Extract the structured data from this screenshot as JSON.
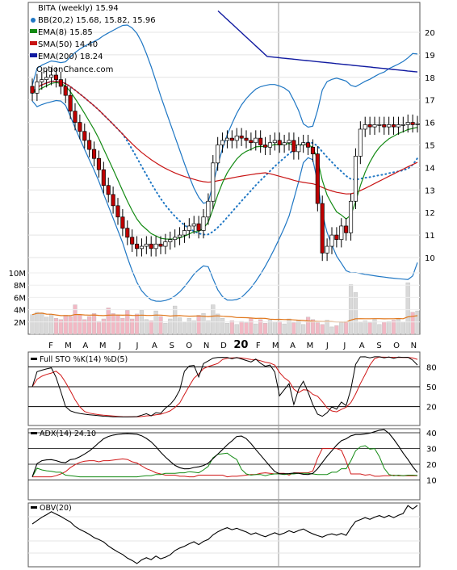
{
  "chart_data": [
    {
      "type": "candlestick",
      "panel": "price",
      "legend": [
        {
          "label": "BITA (weekly) 15.94",
          "color": "#000000",
          "marker": "none"
        },
        {
          "label": "BB(20,2) 15.68, 15.82, 15.96",
          "color": "#1f77c4",
          "marker": "dot"
        },
        {
          "label": "EMA(8) 15.85",
          "color": "#138a13",
          "marker": "square"
        },
        {
          "label": "SMA(50) 14.40",
          "color": "#c81414",
          "marker": "square"
        },
        {
          "label": "EMA(200) 18.24",
          "color": "#101aa0",
          "marker": "square"
        }
      ],
      "watermark": "OptionChance.com",
      "y_ticks": [
        "10",
        "11",
        "12",
        "13",
        "14",
        "15",
        "16",
        "17",
        "18",
        "19",
        "20"
      ],
      "ylim": [
        9,
        21
      ],
      "close": [
        17.3,
        17.8,
        17.9,
        18.0,
        18.1,
        17.9,
        17.6,
        17.2,
        16.5,
        16.0,
        15.6,
        15.2,
        14.8,
        14.4,
        13.9,
        13.2,
        12.8,
        12.3,
        11.8,
        11.3,
        10.9,
        10.6,
        10.4,
        10.5,
        10.6,
        10.4,
        10.6,
        10.5,
        10.7,
        10.8,
        10.9,
        11.0,
        11.2,
        11.4,
        11.5,
        11.2,
        11.8,
        12.5,
        14.2,
        15.0,
        15.2,
        15.3,
        15.2,
        15.4,
        15.3,
        15.2,
        15.1,
        15.3,
        15.0,
        14.9,
        15.1,
        15.2,
        15.0,
        15.1,
        15.2,
        14.7,
        15.0,
        15.1,
        14.9,
        14.6,
        12.4,
        10.2,
        10.5,
        11.0,
        10.8,
        11.4,
        11.1,
        12.5,
        14.5,
        15.7,
        15.9,
        15.8,
        15.9,
        15.9,
        15.8,
        15.9,
        15.8,
        15.9,
        15.9,
        16.0,
        15.9,
        15.94
      ],
      "volume_ticks": [
        "2M",
        "4M",
        "6M",
        "8M",
        "10M"
      ],
      "volume_ylim": [
        0,
        11
      ],
      "volume": [
        3.2,
        3.6,
        3.5,
        2.8,
        3.2,
        2.6,
        2.4,
        3.1,
        2.9,
        4.8,
        3.2,
        2.4,
        2.9,
        3.4,
        2.1,
        2.5,
        4.3,
        3.4,
        3.1,
        2.6,
        3.9,
        2.5,
        3.3,
        3.9,
        2.4,
        2.2,
        3.8,
        2.9,
        1.8,
        2.5,
        4.6,
        2.7,
        1.9,
        2.6,
        2.2,
        3.1,
        3.4,
        2.2,
        4.8,
        3.3,
        2.6,
        1.8,
        2.2,
        1.6,
        2.1,
        1.9,
        2.6,
        1.7,
        2.4,
        1.8,
        2.3,
        2.0,
        2.1,
        1.7,
        2.5,
        1.9,
        2.2,
        1.6,
        2.8,
        2.4,
        1.9,
        1.6,
        2.3,
        1.2,
        1.4,
        1.9,
        2.1,
        8.1,
        6.8,
        1.9,
        2.2,
        1.9,
        2.4,
        1.6,
        2.0,
        2.1,
        2.3,
        2.5,
        2.0,
        8.4,
        3.6,
        3.8
      ]
    },
    {
      "type": "line",
      "panel": "stochastic",
      "legend": [
        {
          "label": "Full STO %K(14) %D(5)",
          "color": "#000000"
        }
      ],
      "y_ticks": [
        "20",
        "50",
        "80"
      ],
      "ylim": [
        0,
        100
      ]
    },
    {
      "type": "line",
      "panel": "adx",
      "legend": [
        {
          "label": "ADX(14) 24.10",
          "color": "#000000"
        }
      ],
      "y_ticks": [
        "10",
        "20",
        "30",
        "40"
      ],
      "ylim": [
        0,
        50
      ]
    },
    {
      "type": "line",
      "panel": "obv",
      "legend": [
        {
          "label": "OBV(20)",
          "color": "#000000"
        }
      ]
    }
  ],
  "x_axis": {
    "labels": [
      "F",
      "M",
      "A",
      "M",
      "J",
      "J",
      "A",
      "S",
      "O",
      "N",
      "D",
      "20",
      "F",
      "M",
      "A",
      "M",
      "J",
      "J",
      "A",
      "S",
      "O",
      "N"
    ]
  },
  "colors": {
    "bb": "#1f77c4",
    "ema8": "#138a13",
    "sma50": "#c81414",
    "ema200": "#101aa0",
    "vol_avg": "#e0761a",
    "sto_d": "#d01818",
    "adx_minus": "#d01818",
    "adx_plus": "#138a13",
    "candle_up": "#ffffff",
    "candle_down": "#c00000",
    "vol_up": "#d9d9d9",
    "vol_down": "#f2b8c4"
  }
}
